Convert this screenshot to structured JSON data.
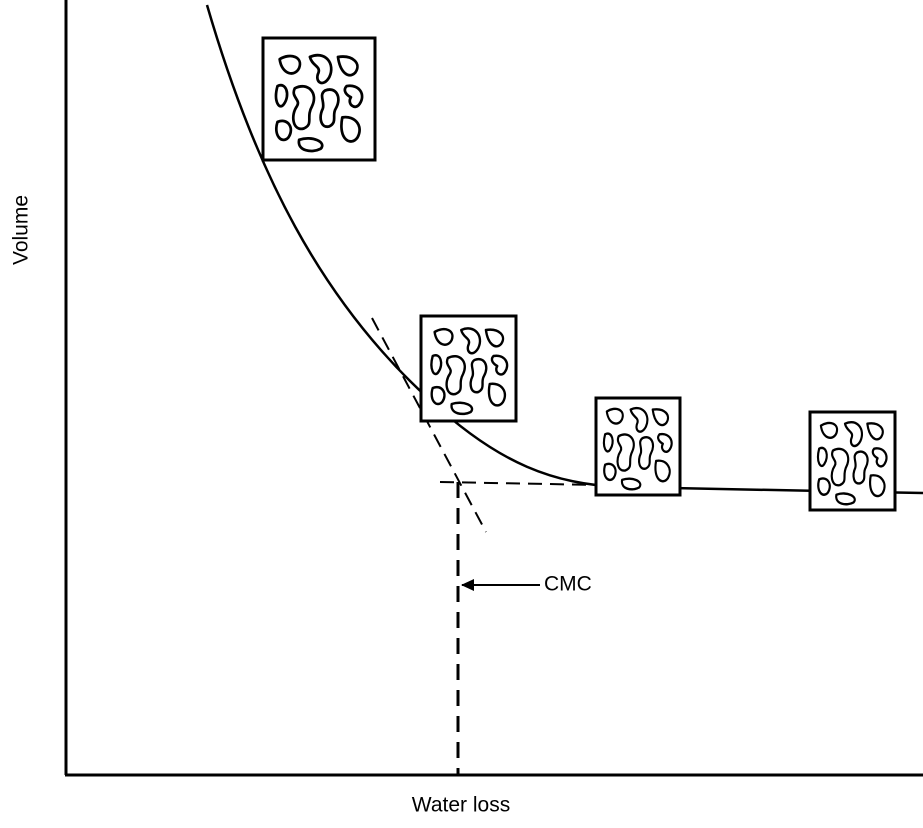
{
  "axes": {
    "y_label": "Volume",
    "x_label": "Water loss"
  },
  "annotations": {
    "cmc": "CMC"
  }
}
